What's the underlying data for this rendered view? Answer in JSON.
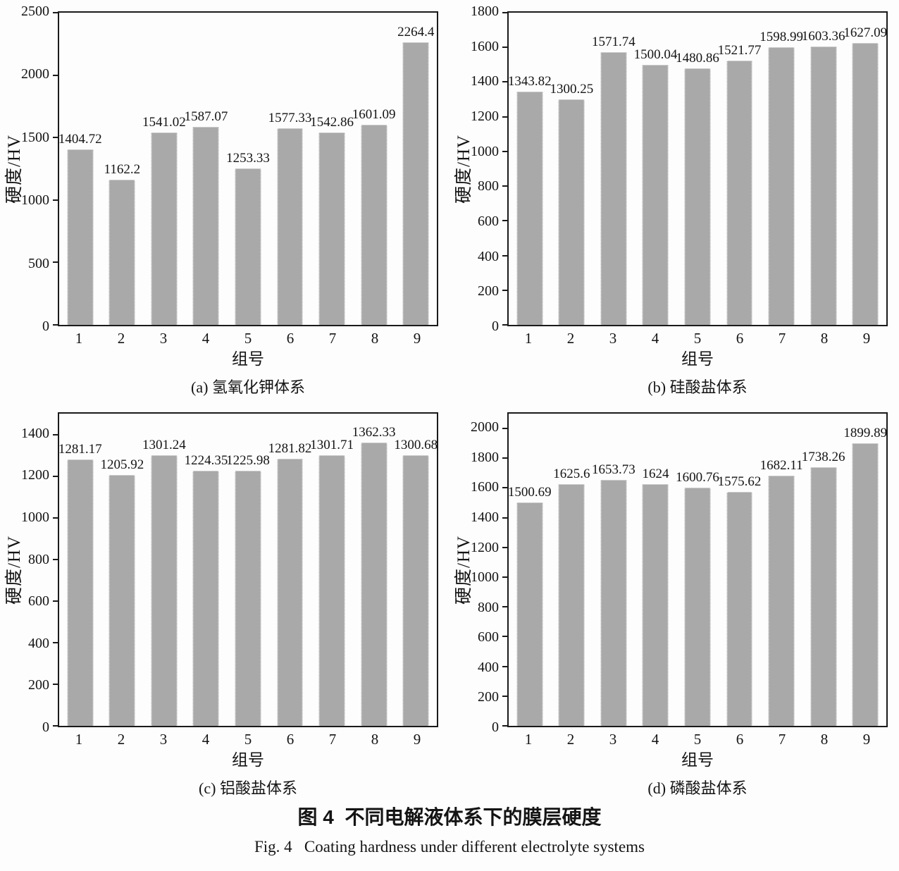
{
  "figure": {
    "caption_zh": "图 4  不同电解液体系下的膜层硬度",
    "caption_en": "Fig. 4   Coating hardness under different electrolyte systems"
  },
  "colors": {
    "bar_fill": "#a9a9a9",
    "bar_edge": "#ededed",
    "axis": "#1a1a1a",
    "text": "#141414",
    "background": "#fdfdfd"
  },
  "chart_data": [
    {
      "panel": "a",
      "type": "bar",
      "title": "(a) 氢氧化钾体系",
      "xlabel": "组号",
      "ylabel": "硬度/HV",
      "categories": [
        "1",
        "2",
        "3",
        "4",
        "5",
        "6",
        "7",
        "8",
        "9"
      ],
      "values": [
        1404.72,
        1162.2,
        1541.02,
        1587.07,
        1253.33,
        1577.33,
        1542.86,
        1601.09,
        2264.4
      ],
      "ylim": [
        0,
        2500
      ],
      "ytick_step": 500,
      "grid": false,
      "legend": false
    },
    {
      "panel": "b",
      "type": "bar",
      "title": "(b) 硅酸盐体系",
      "xlabel": "组号",
      "ylabel": "硬度/HV",
      "categories": [
        "1",
        "2",
        "3",
        "4",
        "5",
        "6",
        "7",
        "8",
        "9"
      ],
      "values": [
        1343.82,
        1300.25,
        1571.74,
        1500.04,
        1480.86,
        1521.77,
        1598.99,
        1603.36,
        1627.09
      ],
      "ylim": [
        0,
        1800
      ],
      "ytick_step": 200,
      "grid": false,
      "legend": false
    },
    {
      "panel": "c",
      "type": "bar",
      "title": "(c) 铝酸盐体系",
      "xlabel": "组号",
      "ylabel": "硬度/HV",
      "categories": [
        "1",
        "2",
        "3",
        "4",
        "5",
        "6",
        "7",
        "8",
        "9"
      ],
      "values": [
        1281.17,
        1205.92,
        1301.24,
        1224.35,
        1225.98,
        1281.82,
        1301.71,
        1362.33,
        1300.68
      ],
      "ylim": [
        0,
        1500
      ],
      "ytick_step": 200,
      "grid": false,
      "legend": false
    },
    {
      "panel": "d",
      "type": "bar",
      "title": "(d) 磷酸盐体系",
      "xlabel": "组号",
      "ylabel": "硬度/HV",
      "categories": [
        "1",
        "2",
        "3",
        "4",
        "5",
        "6",
        "7",
        "8",
        "9"
      ],
      "values": [
        1500.69,
        1625.6,
        1653.73,
        1624,
        1600.76,
        1575.62,
        1682.11,
        1738.26,
        1899.89
      ],
      "ylim": [
        0,
        2100
      ],
      "ytick_step": 200,
      "grid": false,
      "legend": false
    }
  ]
}
